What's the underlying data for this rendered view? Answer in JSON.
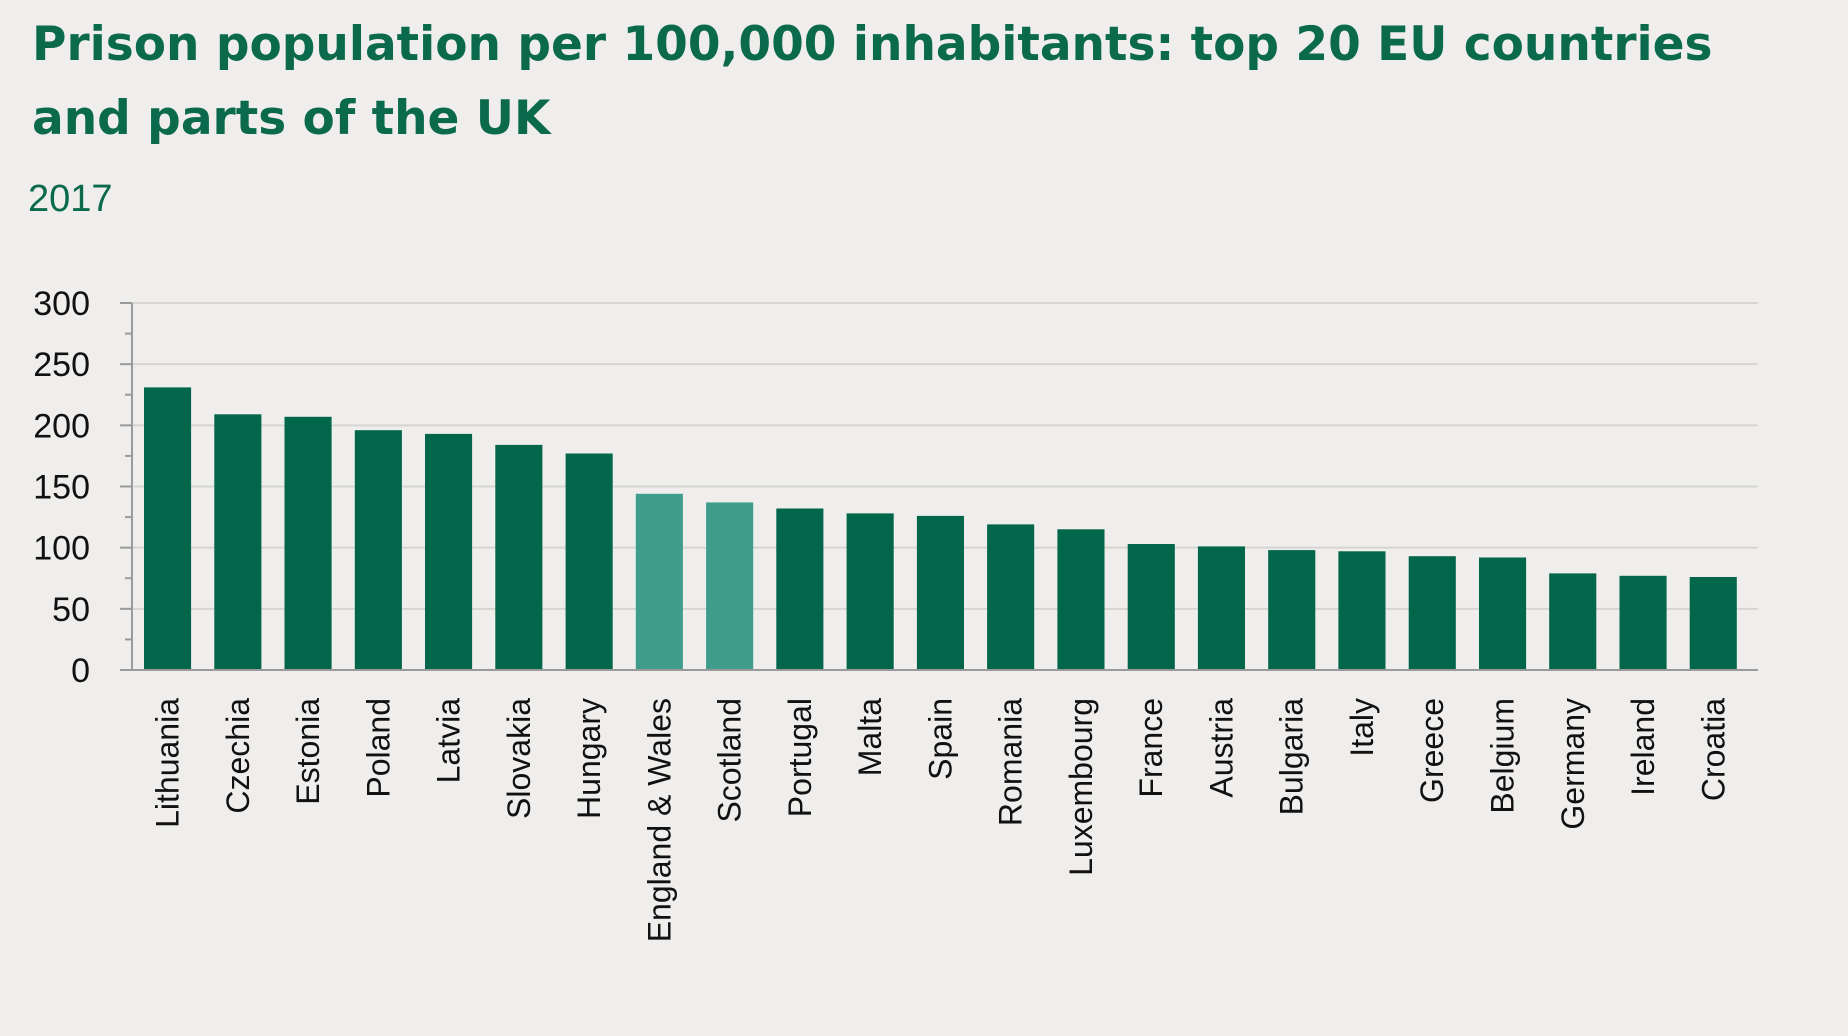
{
  "header": {
    "title": "Prison population per 100,000 inhabitants: top 20 EU countries and parts of the UK",
    "subtitle": "2017"
  },
  "colors": {
    "background": "#efeeec",
    "title": "#0b6a4b",
    "bar_primary": "#02664a",
    "bar_highlight": "#3f9e8b",
    "gridline": "#d6d5d2",
    "axis": "#9a9a9a"
  },
  "chart_data": {
    "type": "bar",
    "title": "Prison population per 100,000 inhabitants: top 20 EU countries and parts of the UK",
    "subtitle": "2017",
    "xlabel": "",
    "ylabel": "",
    "ylim": [
      0,
      300
    ],
    "yticks": [
      0,
      50,
      100,
      150,
      200,
      250,
      300
    ],
    "grid": true,
    "categories": [
      "Lithuania",
      "Czechia",
      "Estonia",
      "Poland",
      "Latvia",
      "Slovakia",
      "Hungary",
      "England & Wales",
      "Scotland",
      "Portugal",
      "Malta",
      "Spain",
      "Romania",
      "Luxembourg",
      "France",
      "Austria",
      "Bulgaria",
      "Italy",
      "Greece",
      "Belgium",
      "Germany",
      "Ireland",
      "Croatia"
    ],
    "values": [
      231,
      209,
      207,
      196,
      193,
      184,
      177,
      144,
      137,
      132,
      128,
      126,
      119,
      115,
      103,
      101,
      98,
      97,
      93,
      92,
      79,
      77,
      76
    ],
    "highlighted": [
      "England & Wales",
      "Scotland"
    ]
  }
}
